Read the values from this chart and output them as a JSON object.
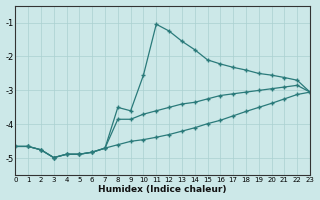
{
  "xlabel": "Humidex (Indice chaleur)",
  "background_color": "#cce8e8",
  "grid_color": "#aad0d0",
  "line_color": "#2a7a7a",
  "xlim": [
    0,
    23
  ],
  "ylim": [
    -5.5,
    -0.5
  ],
  "yticks": [
    -5,
    -4,
    -3,
    -2,
    -1
  ],
  "xticks": [
    0,
    1,
    2,
    3,
    4,
    5,
    6,
    7,
    8,
    9,
    10,
    11,
    12,
    13,
    14,
    15,
    16,
    17,
    18,
    19,
    20,
    21,
    22,
    23
  ],
  "line_upper_x": [
    0,
    1,
    2,
    3,
    4,
    5,
    6,
    7,
    8,
    9,
    10,
    11,
    12,
    13,
    14,
    15,
    16,
    17,
    18,
    19,
    20,
    21,
    22,
    23
  ],
  "line_upper_y": [
    -4.65,
    -4.65,
    -4.75,
    -4.98,
    -4.88,
    -4.88,
    -4.82,
    -4.7,
    -3.5,
    -3.6,
    -2.55,
    -1.05,
    -1.25,
    -1.55,
    -1.8,
    -2.1,
    -2.22,
    -2.32,
    -2.4,
    -2.5,
    -2.55,
    -2.62,
    -2.7,
    -3.05
  ],
  "line_mid_x": [
    0,
    1,
    2,
    3,
    4,
    5,
    6,
    7,
    8,
    9,
    10,
    11,
    12,
    13,
    14,
    15,
    16,
    17,
    18,
    19,
    20,
    21,
    22,
    23
  ],
  "line_mid_y": [
    -4.65,
    -4.65,
    -4.75,
    -4.98,
    -4.88,
    -4.88,
    -4.82,
    -4.7,
    -3.85,
    -3.85,
    -3.7,
    -3.6,
    -3.5,
    -3.4,
    -3.35,
    -3.25,
    -3.15,
    -3.1,
    -3.05,
    -3.0,
    -2.95,
    -2.9,
    -2.85,
    -3.05
  ],
  "line_lower_x": [
    0,
    1,
    2,
    3,
    4,
    5,
    6,
    7,
    8,
    9,
    10,
    11,
    12,
    13,
    14,
    15,
    16,
    17,
    18,
    19,
    20,
    21,
    22,
    23
  ],
  "line_lower_y": [
    -4.65,
    -4.65,
    -4.75,
    -4.98,
    -4.88,
    -4.88,
    -4.82,
    -4.7,
    -4.6,
    -4.5,
    -4.45,
    -4.38,
    -4.3,
    -4.2,
    -4.1,
    -3.98,
    -3.88,
    -3.75,
    -3.62,
    -3.5,
    -3.38,
    -3.25,
    -3.12,
    -3.05
  ]
}
